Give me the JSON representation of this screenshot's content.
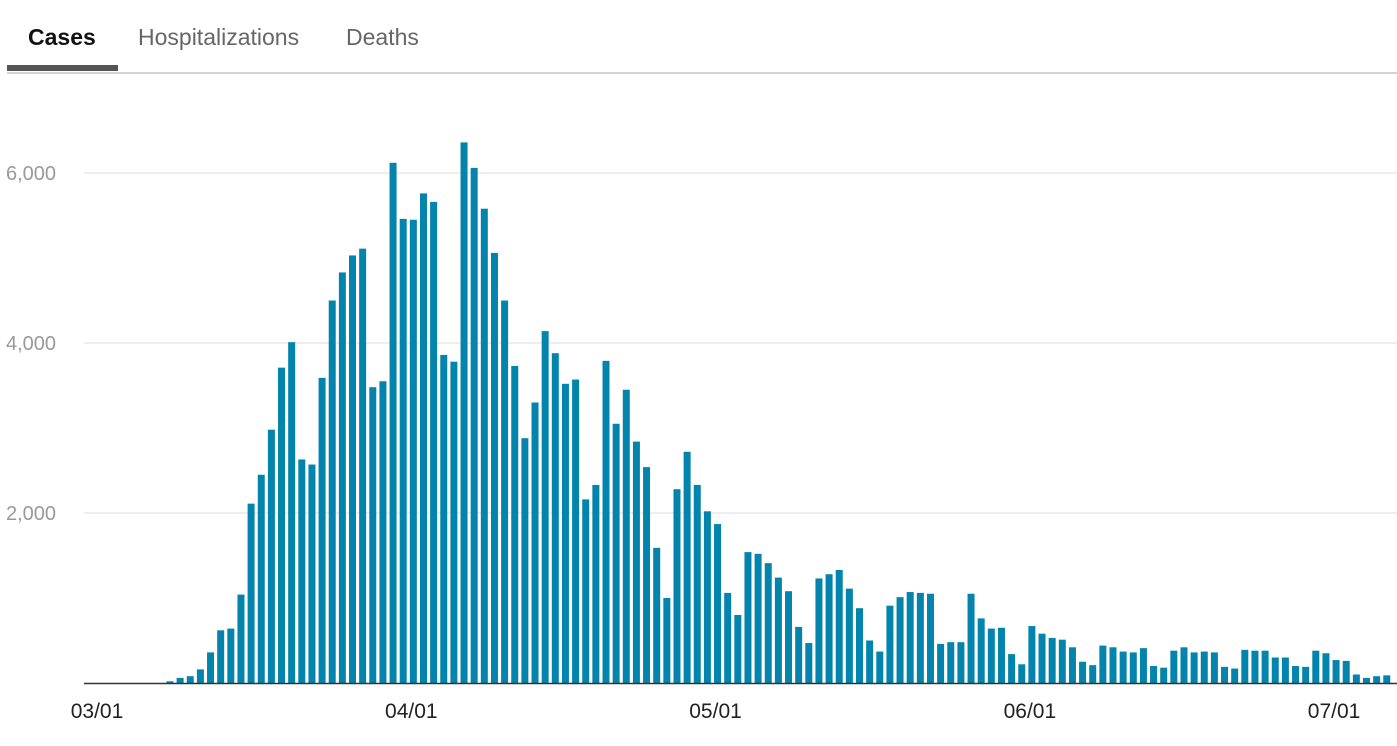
{
  "tabs": [
    {
      "label": "Cases",
      "active": true
    },
    {
      "label": "Hospitalizations",
      "active": false
    },
    {
      "label": "Deaths",
      "active": false
    }
  ],
  "colors": {
    "bar": "#0384ad",
    "grid": "#dddddd",
    "axis": "#333333",
    "ytick": "#999999",
    "xtick": "#222222"
  },
  "chart_data": {
    "type": "bar",
    "x_start": "03/01",
    "ylim": [
      0,
      6400
    ],
    "yticks": [
      {
        "value": 2000,
        "label": "2,000"
      },
      {
        "value": 4000,
        "label": "4,000"
      },
      {
        "value": 6000,
        "label": "6,000"
      }
    ],
    "xticks": [
      {
        "index": 0,
        "label": "03/01"
      },
      {
        "index": 31,
        "label": "04/01"
      },
      {
        "index": 61,
        "label": "05/01"
      },
      {
        "index": 92,
        "label": "06/01"
      },
      {
        "index": 122,
        "label": "07/01"
      }
    ],
    "grid": true,
    "values": [
      0,
      0,
      0,
      0,
      0,
      0,
      0,
      20,
      60,
      80,
      160,
      360,
      620,
      640,
      1040,
      2110,
      2450,
      2980,
      3710,
      4010,
      2630,
      2570,
      3590,
      4500,
      4830,
      5030,
      5110,
      3480,
      3550,
      6120,
      5460,
      5450,
      5760,
      5660,
      3860,
      3780,
      6360,
      6060,
      5580,
      5060,
      4500,
      3730,
      2880,
      3300,
      4140,
      3880,
      3520,
      3570,
      2160,
      2330,
      3790,
      3050,
      3450,
      2840,
      2540,
      1590,
      1000,
      2280,
      2720,
      2330,
      2020,
      1870,
      1060,
      800,
      1540,
      1520,
      1410,
      1240,
      1080,
      660,
      470,
      1230,
      1280,
      1330,
      1110,
      880,
      500,
      370,
      910,
      1010,
      1070,
      1060,
      1050,
      460,
      480,
      480,
      1050,
      760,
      640,
      650,
      340,
      220,
      670,
      580,
      530,
      510,
      420,
      250,
      210,
      440,
      420,
      370,
      360,
      410,
      200,
      180,
      380,
      420,
      360,
      370,
      360,
      190,
      170,
      390,
      380,
      380,
      300,
      300,
      200,
      190,
      380,
      350,
      270,
      260,
      100,
      60,
      80,
      90
    ]
  }
}
